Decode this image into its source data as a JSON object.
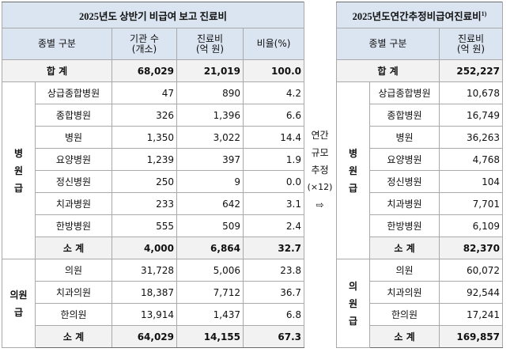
{
  "left": {
    "title": "2025년도 상반기 비급여 보고 진료비",
    "headers": {
      "type": "종별 구분",
      "inst": [
        "기관 수",
        "(개소)"
      ],
      "cost": [
        "진료비",
        "(억 원)"
      ],
      "ratio": "비율(%)"
    },
    "total": {
      "label": "합 계",
      "inst": "68,029",
      "cost": "21,019",
      "ratio": "100.0"
    },
    "hospital": {
      "cat": [
        "병",
        "원",
        "급"
      ],
      "rows": [
        {
          "name": "상급종합병원",
          "inst": "47",
          "cost": "890",
          "ratio": "4.2"
        },
        {
          "name": "종합병원",
          "inst": "326",
          "cost": "1,396",
          "ratio": "6.6"
        },
        {
          "name": "병원",
          "inst": "1,350",
          "cost": "3,022",
          "ratio": "14.4"
        },
        {
          "name": "요양병원",
          "inst": "1,239",
          "cost": "397",
          "ratio": "1.9"
        },
        {
          "name": "정신병원",
          "inst": "250",
          "cost": "9",
          "ratio": "0.0"
        },
        {
          "name": "치과병원",
          "inst": "233",
          "cost": "642",
          "ratio": "3.1"
        },
        {
          "name": "한방병원",
          "inst": "555",
          "cost": "509",
          "ratio": "2.4"
        }
      ],
      "subtotal": {
        "label": "소 계",
        "inst": "4,000",
        "cost": "6,864",
        "ratio": "32.7"
      }
    },
    "clinic": {
      "cat": [
        "의원",
        "급"
      ],
      "rows": [
        {
          "name": "의원",
          "inst": "31,728",
          "cost": "5,006",
          "ratio": "23.8"
        },
        {
          "name": "치과의원",
          "inst": "18,387",
          "cost": "7,712",
          "ratio": "36.7"
        },
        {
          "name": "한의원",
          "inst": "13,914",
          "cost": "1,437",
          "ratio": "6.8"
        }
      ],
      "subtotal": {
        "label": "소 계",
        "inst": "64,029",
        "cost": "14,155",
        "ratio": "67.3"
      }
    }
  },
  "middle": {
    "line1": "연간",
    "line2": "규모",
    "line3": "추정",
    "line4": "(×12)",
    "arrow": "⇨"
  },
  "right": {
    "title": "2025년도연간추정비급여진료비",
    "title_note": "1)",
    "headers": {
      "type": "종별 구분",
      "cost": [
        "진료비",
        "(억 원)"
      ]
    },
    "total": {
      "label": "합 계",
      "cost": "252,227"
    },
    "hospital": {
      "cat": [
        "병",
        "원",
        "급"
      ],
      "rows": [
        {
          "name": "상급종합병원",
          "cost": "10,678"
        },
        {
          "name": "종합병원",
          "cost": "16,749"
        },
        {
          "name": "병원",
          "cost": "36,263"
        },
        {
          "name": "요양병원",
          "cost": "4,768"
        },
        {
          "name": "정신병원",
          "cost": "104"
        },
        {
          "name": "치과병원",
          "cost": "7,701"
        },
        {
          "name": "한방병원",
          "cost": "6,109"
        }
      ],
      "subtotal": {
        "label": "소 계",
        "cost": "82,370"
      }
    },
    "clinic": {
      "cat": [
        "의",
        "원",
        "급"
      ],
      "rows": [
        {
          "name": "의원",
          "cost": "60,072"
        },
        {
          "name": "치과의원",
          "cost": "92,544"
        },
        {
          "name": "한의원",
          "cost": "17,241"
        }
      ],
      "subtotal": {
        "label": "소 계",
        "cost": "169,857"
      }
    }
  }
}
